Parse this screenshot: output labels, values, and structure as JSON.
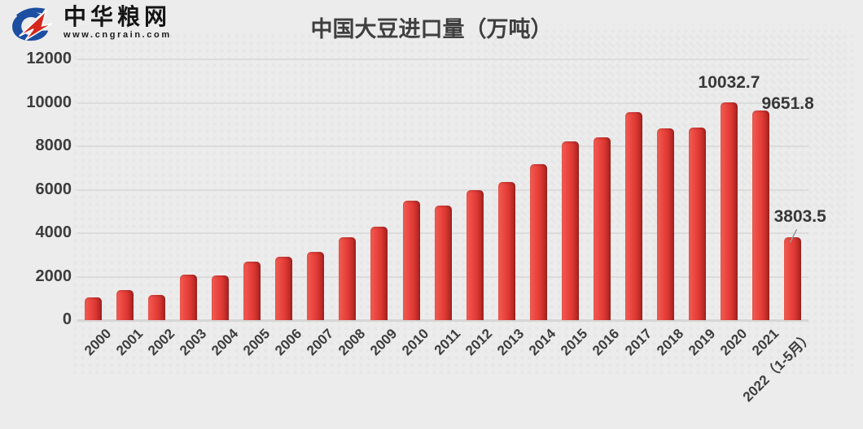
{
  "page": {
    "background": "#ececec"
  },
  "logo": {
    "title": "中华粮网",
    "url": "www.cngrain.com",
    "colors": {
      "blue": "#1c4ea1",
      "red": "#d6281e",
      "text": "#151515"
    }
  },
  "chart_data": {
    "type": "bar",
    "title": "中国大豆进口量（万吨）",
    "xlabel": "",
    "ylabel": "",
    "categories": [
      "2000",
      "2001",
      "2002",
      "2003",
      "2004",
      "2005",
      "2006",
      "2007",
      "2008",
      "2009",
      "2010",
      "2011",
      "2012",
      "2013",
      "2014",
      "2015",
      "2016",
      "2017",
      "2018",
      "2019",
      "2020",
      "2021",
      "2022（1-5月）"
    ],
    "values": [
      1040,
      1400,
      1160,
      2100,
      2040,
      2700,
      2900,
      3150,
      3800,
      4290,
      5500,
      5280,
      5970,
      6360,
      7170,
      8210,
      8420,
      9570,
      8820,
      8860,
      10032.7,
      9651.8,
      3803.5
    ],
    "ylim": [
      0,
      12000
    ],
    "yticks": [
      0,
      2000,
      4000,
      6000,
      8000,
      10000,
      12000
    ],
    "grid": "horizontal",
    "legend": "none",
    "bar_color": "#e23c38",
    "bar_gradient": [
      "#f0594f",
      "#e9443e",
      "#9c211e"
    ],
    "gridline_color": "#dcdcdc",
    "text_color": "#3d3d3d",
    "data_labels": [
      {
        "index": 20,
        "text": "10032.7",
        "placement": "above-center"
      },
      {
        "index": 21,
        "text": "9651.8",
        "placement": "top-right"
      },
      {
        "index": 22,
        "text": "3803.5",
        "placement": "above-with-leader"
      }
    ]
  }
}
